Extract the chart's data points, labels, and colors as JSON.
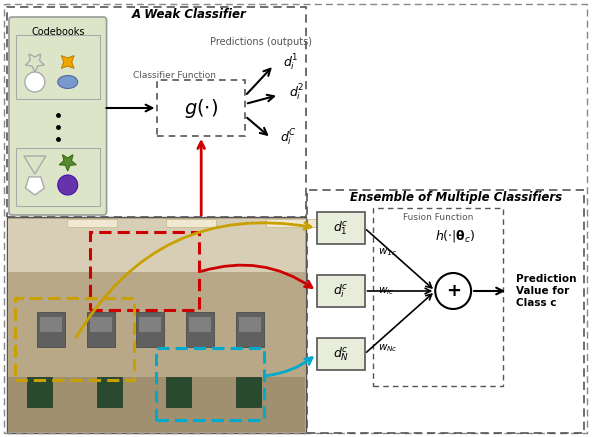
{
  "bg_color": "#ffffff",
  "weak_classifier_label": "A Weak Classifier",
  "ensemble_label": "Ensemble of Multiple Classifiers",
  "codebooks_label": "Codebooks",
  "classifier_fn_label": "Classifier Function",
  "predictions_label": "Predictions (outputs)",
  "fusion_fn_label": "Fusion Function",
  "prediction_output": "Prediction\nValue for\nClass c",
  "codebook_bg": "#dde5c8",
  "codebook_ec": "#999999",
  "box_bg": "#e8eddb",
  "box_ec": "#555555",
  "outer_dash_color": "#888888",
  "red_color": "#cc0000",
  "gold_color": "#c8a000",
  "cyan_color": "#00aacc",
  "black": "#111111",
  "photo_colors": {
    "ceiling": "#d8cdb0",
    "upper_wall": "#c0b090",
    "lower_wall": "#a89870",
    "floor": "#907850"
  },
  "fig_w": 5.93,
  "fig_h": 4.37,
  "dpi": 100
}
